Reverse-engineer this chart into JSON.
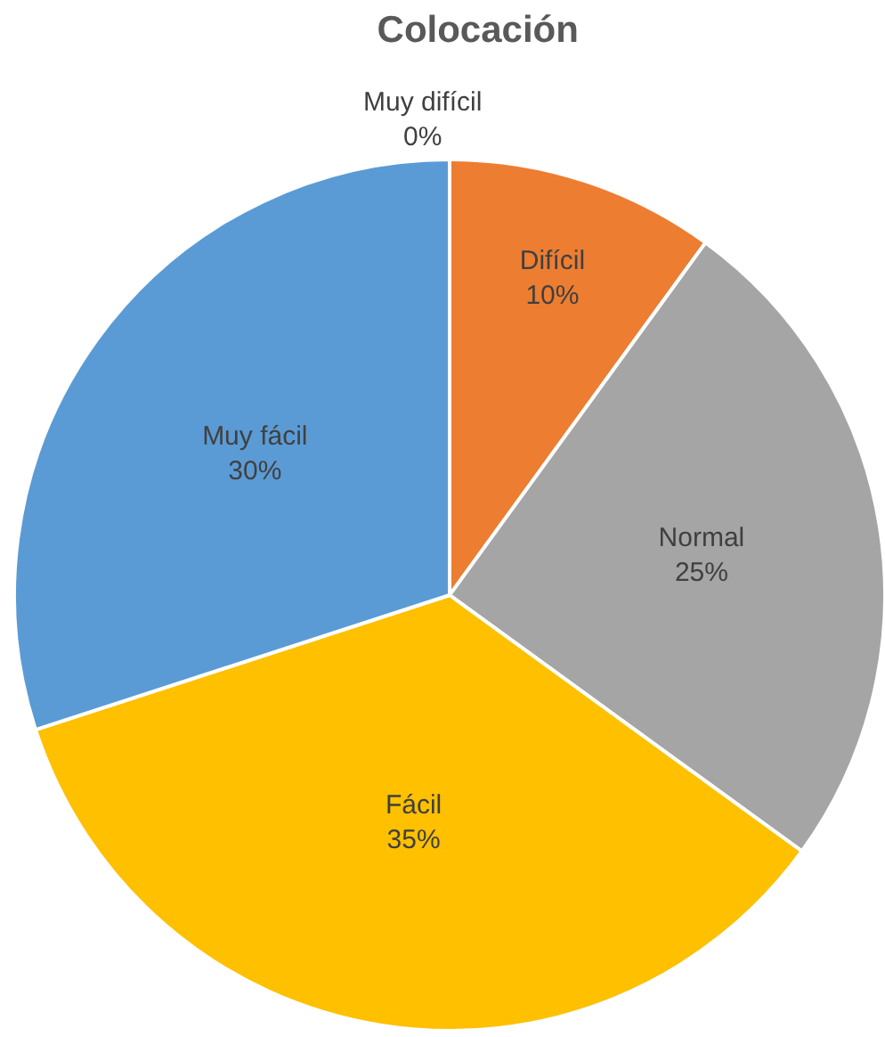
{
  "chart_data": {
    "type": "pie",
    "title": "Colocación",
    "categories": [
      "Muy difícil",
      "Difícil",
      "Normal",
      "Fácil",
      "Muy fácil"
    ],
    "values": [
      0,
      10,
      25,
      35,
      30
    ],
    "value_labels": [
      "0%",
      "10%",
      "25%",
      "35%",
      "30%"
    ],
    "colors": [
      "#5b9bd5",
      "#ed7d31",
      "#a5a5a5",
      "#ffc000",
      "#5b9bd5"
    ],
    "legend": false
  }
}
